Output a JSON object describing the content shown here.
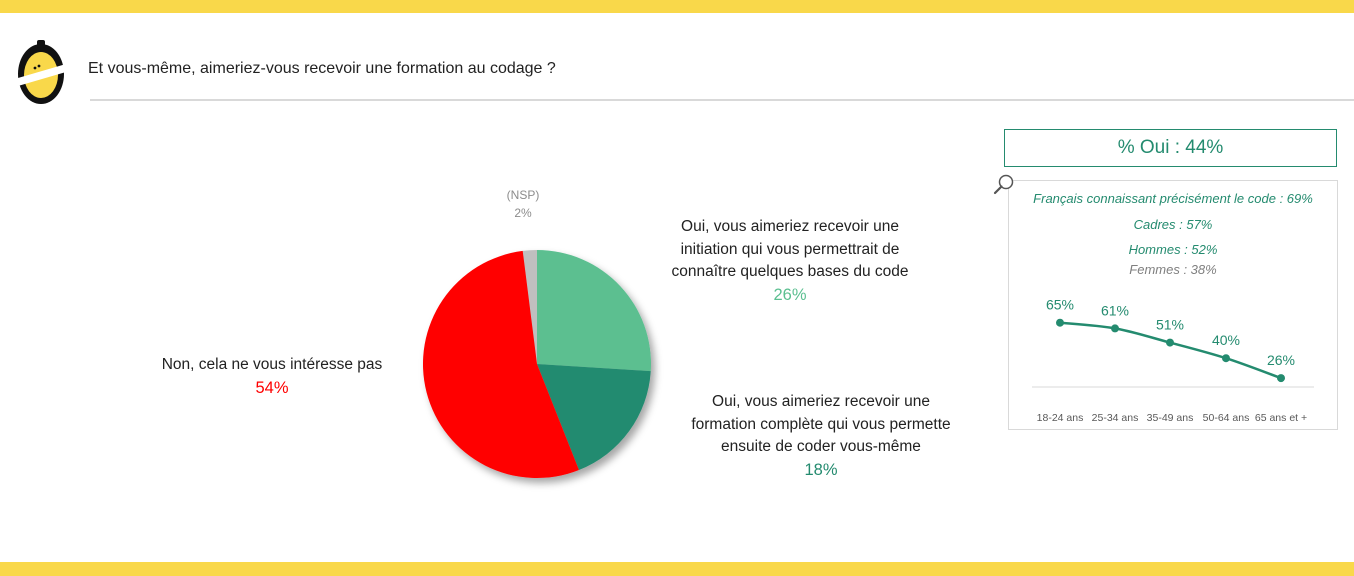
{
  "header": {
    "question": "Et vous-même, aimeriez-vous recevoir une formation au codage ?"
  },
  "colors": {
    "accent_yellow": "#f9d84a",
    "non": "#ff0000",
    "initiation": "#5bbf90",
    "formation": "#248b6f",
    "nsp": "#bfbfbf",
    "text_green": "#248b6f"
  },
  "chart_data": [
    {
      "type": "pie",
      "categories": [
        "(NSP)",
        "Oui, vous aimeriez recevoir une initiation qui vous permettrait de connaître quelques bases du code",
        "Oui, vous aimeriez recevoir une formation complète qui vous permette ensuite de coder vous-même",
        "Non, cela ne vous intéresse pas"
      ],
      "values": [
        2,
        26,
        18,
        54
      ],
      "labels": {
        "nsp": {
          "name": "(NSP)",
          "value": "2%"
        },
        "initiation": {
          "lines": [
            "Oui, vous aimeriez recevoir une",
            "initiation qui vous permettrait de",
            "connaître quelques bases du code"
          ],
          "value": "26%"
        },
        "formation": {
          "lines": [
            "Oui, vous aimeriez recevoir une",
            "formation complète qui vous permette",
            "ensuite de coder vous-même"
          ],
          "value": "18%"
        },
        "non": {
          "lines": [
            "Non, cela ne vous intéresse pas"
          ],
          "value": "54%"
        }
      }
    },
    {
      "type": "line",
      "title": "% Oui : 44%",
      "categories": [
        "18-24 ans",
        "25-34 ans",
        "35-49 ans",
        "50-64 ans",
        "65 ans et +"
      ],
      "values": [
        65,
        61,
        51,
        40,
        26
      ],
      "value_labels": [
        "65%",
        "61%",
        "51%",
        "40%",
        "26%"
      ],
      "ylim": [
        0,
        100
      ]
    }
  ],
  "highlights": {
    "connaissant": "Français connaissant précisément le code : 69%",
    "cadres": "Cadres : 57%",
    "hommes": "Hommes : 52%",
    "femmes": "Femmes : 38%"
  }
}
